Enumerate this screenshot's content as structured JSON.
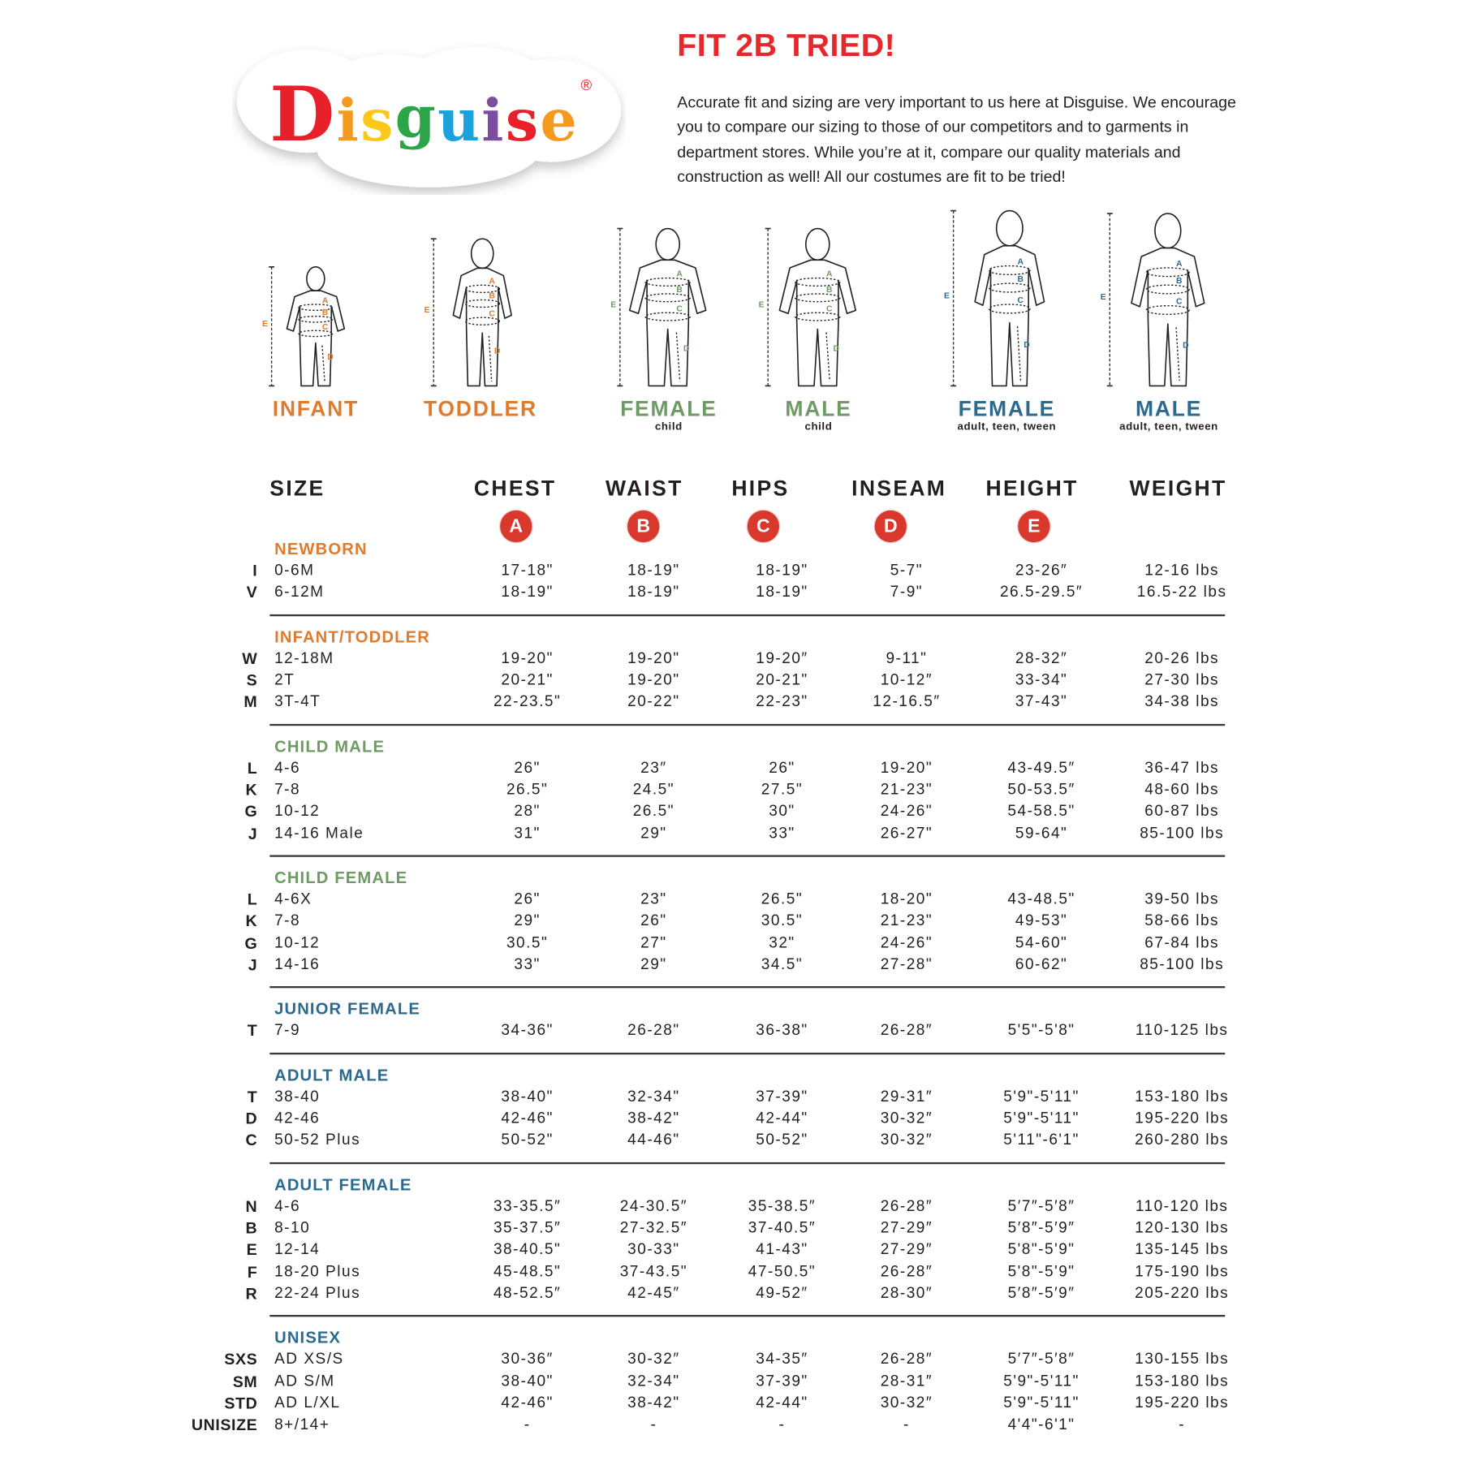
{
  "brand": {
    "logo_text": "Disguise",
    "logo_letters": [
      {
        "ch": "D",
        "color": "#e8202a"
      },
      {
        "ch": "i",
        "color": "#f39a1f"
      },
      {
        "ch": "s",
        "color": "#fcc817"
      },
      {
        "ch": "g",
        "color": "#2aa548"
      },
      {
        "ch": "u",
        "color": "#1ba2dc"
      },
      {
        "ch": "i",
        "color": "#7b4ea0"
      },
      {
        "ch": "s",
        "color": "#e8202a"
      },
      {
        "ch": "e",
        "color": "#f39a1f"
      }
    ],
    "registered_mark": "®"
  },
  "header": {
    "title": "FIT 2B TRIED!",
    "intro_lines": [
      "Accurate fit and sizing are very important to us here at Disguise. We encourage",
      "you to compare our sizing to those of our competitors and to garments in",
      "department stores. While you’re at it, compare our quality materials and",
      "construction as well! All our costumes are fit to be tried!"
    ]
  },
  "colors": {
    "title_red": "#e5282c",
    "badge_red": "#d9382c",
    "orange": "#e07a2c",
    "green": "#6e9a64",
    "blue": "#2b6a8f",
    "text": "#231f20"
  },
  "figures": [
    {
      "label": "INFANT",
      "sublabel": "",
      "color": "orange",
      "kind": "infant"
    },
    {
      "label": "TODDLER",
      "sublabel": "",
      "color": "orange",
      "kind": "toddler"
    },
    {
      "label": "FEMALE",
      "sublabel": "child",
      "color": "green",
      "kind": "child-female"
    },
    {
      "label": "MALE",
      "sublabel": "child",
      "color": "green",
      "kind": "child-male"
    },
    {
      "label": "FEMALE",
      "sublabel": "adult, teen, tween",
      "color": "blue",
      "kind": "adult-female"
    },
    {
      "label": "MALE",
      "sublabel": "adult, teen, tween",
      "color": "blue",
      "kind": "adult-male"
    }
  ],
  "measure_letters": [
    "A",
    "B",
    "C",
    "D",
    "E"
  ],
  "columns": {
    "size": "SIZE",
    "chest": "CHEST",
    "waist": "WAIST",
    "hips": "HIPS",
    "inseam": "INSEAM",
    "height": "HEIGHT",
    "weight": "WEIGHT",
    "badges": {
      "chest": "A",
      "waist": "B",
      "hips": "C",
      "inseam": "D",
      "height": "E"
    }
  },
  "sections": [
    {
      "title": "NEWBORN",
      "color": "orange",
      "rows": [
        {
          "code": "I",
          "size": "0-6M",
          "chest": "17-18\"",
          "waist": "18-19\"",
          "hips": "18-19\"",
          "inseam": "5-7\"",
          "height": "23-26″",
          "weight": "12-16 lbs"
        },
        {
          "code": "V",
          "size": "6-12M",
          "chest": "18-19\"",
          "waist": "18-19\"",
          "hips": "18-19\"",
          "inseam": "7-9\"",
          "height": "26.5-29.5″",
          "weight": "16.5-22 lbs"
        }
      ]
    },
    {
      "title": "INFANT/TODDLER",
      "color": "orange",
      "rows": [
        {
          "code": "W",
          "size": "12-18M",
          "chest": "19-20\"",
          "waist": "19-20\"",
          "hips": "19-20″",
          "inseam": "9-11\"",
          "height": "28-32″",
          "weight": "20-26 lbs"
        },
        {
          "code": "S",
          "size": "2T",
          "chest": "20-21\"",
          "waist": "19-20\"",
          "hips": "20-21\"",
          "inseam": "10-12″",
          "height": "33-34\"",
          "weight": "27-30 lbs"
        },
        {
          "code": "M",
          "size": "3T-4T",
          "chest": "22-23.5\"",
          "waist": "20-22\"",
          "hips": "22-23\"",
          "inseam": "12-16.5″",
          "height": "37-43\"",
          "weight": "34-38 lbs"
        }
      ]
    },
    {
      "title": "CHILD MALE",
      "color": "green",
      "rows": [
        {
          "code": "L",
          "size": "4-6",
          "chest": "26\"",
          "waist": "23″",
          "hips": "26\"",
          "inseam": "19-20\"",
          "height": "43-49.5″",
          "weight": "36-47 lbs"
        },
        {
          "code": "K",
          "size": "7-8",
          "chest": "26.5\"",
          "waist": "24.5\"",
          "hips": "27.5\"",
          "inseam": "21-23\"",
          "height": "50-53.5″",
          "weight": "48-60 lbs"
        },
        {
          "code": "G",
          "size": "10-12",
          "chest": "28\"",
          "waist": "26.5\"",
          "hips": "30\"",
          "inseam": "24-26\"",
          "height": "54-58.5\"",
          "weight": "60-87 lbs"
        },
        {
          "code": "J",
          "size": "14-16 Male",
          "chest": "31\"",
          "waist": "29\"",
          "hips": "33\"",
          "inseam": "26-27\"",
          "height": "59-64\"",
          "weight": "85-100 lbs"
        }
      ]
    },
    {
      "title": "CHILD FEMALE",
      "color": "green",
      "rows": [
        {
          "code": "L",
          "size": "4-6X",
          "chest": "26\"",
          "waist": "23\"",
          "hips": "26.5\"",
          "inseam": "18-20\"",
          "height": "43-48.5\"",
          "weight": "39-50 lbs"
        },
        {
          "code": "K",
          "size": "7-8",
          "chest": "29\"",
          "waist": "26\"",
          "hips": "30.5\"",
          "inseam": "21-23\"",
          "height": "49-53\"",
          "weight": "58-66 lbs"
        },
        {
          "code": "G",
          "size": "10-12",
          "chest": "30.5\"",
          "waist": "27\"",
          "hips": "32\"",
          "inseam": "24-26\"",
          "height": "54-60\"",
          "weight": "67-84 lbs"
        },
        {
          "code": "J",
          "size": "14-16",
          "chest": "33\"",
          "waist": "29\"",
          "hips": "34.5\"",
          "inseam": "27-28\"",
          "height": "60-62\"",
          "weight": "85-100 lbs"
        }
      ]
    },
    {
      "title": "JUNIOR FEMALE",
      "color": "blue",
      "rows": [
        {
          "code": "T",
          "size": "7-9",
          "chest": "34-36\"",
          "waist": "26-28\"",
          "hips": "36-38\"",
          "inseam": "26-28″",
          "height": "5'5\"-5'8\"",
          "weight": "110-125 lbs"
        }
      ]
    },
    {
      "title": "ADULT MALE",
      "color": "blue",
      "rows": [
        {
          "code": "T",
          "size": "38-40",
          "chest": "38-40\"",
          "waist": "32-34\"",
          "hips": "37-39\"",
          "inseam": "29-31″",
          "height": "5'9\"-5'11\"",
          "weight": "153-180 lbs"
        },
        {
          "code": "D",
          "size": "42-46",
          "chest": "42-46\"",
          "waist": "38-42\"",
          "hips": "42-44\"",
          "inseam": "30-32″",
          "height": "5'9\"-5'11\"",
          "weight": "195-220 lbs"
        },
        {
          "code": "C",
          "size": "50-52 Plus",
          "chest": "50-52\"",
          "waist": "44-46\"",
          "hips": "50-52\"",
          "inseam": "30-32″",
          "height": "5'11\"-6'1\"",
          "weight": "260-280 lbs"
        }
      ]
    },
    {
      "title": "ADULT FEMALE",
      "color": "blue",
      "rows": [
        {
          "code": "N",
          "size": "4-6",
          "chest": "33-35.5″",
          "waist": "24-30.5″",
          "hips": "35-38.5″",
          "inseam": "26-28″",
          "height": "5′7″-5′8″",
          "weight": "110-120 lbs"
        },
        {
          "code": "B",
          "size": "8-10",
          "chest": "35-37.5″",
          "waist": "27-32.5″",
          "hips": "37-40.5″",
          "inseam": "27-29″",
          "height": "5′8″-5′9″",
          "weight": "120-130 lbs"
        },
        {
          "code": "E",
          "size": "12-14",
          "chest": "38-40.5\"",
          "waist": "30-33\"",
          "hips": "41-43\"",
          "inseam": "27-29″",
          "height": "5'8\"-5'9\"",
          "weight": "135-145 lbs"
        },
        {
          "code": "F",
          "size": "18-20 Plus",
          "chest": "45-48.5\"",
          "waist": "37-43.5\"",
          "hips": "47-50.5\"",
          "inseam": "26-28″",
          "height": "5'8\"-5'9\"",
          "weight": "175-190 lbs"
        },
        {
          "code": "R",
          "size": "22-24 Plus",
          "chest": "48-52.5″",
          "waist": "42-45″",
          "hips": "49-52″",
          "inseam": "28-30″",
          "height": "5′8″-5′9″",
          "weight": "205-220 lbs"
        }
      ]
    },
    {
      "title": "UNISEX",
      "color": "blue",
      "rows": [
        {
          "code": "SXS",
          "size": "AD XS/S",
          "chest": "30-36″",
          "waist": "30-32″",
          "hips": "34-35″",
          "inseam": "26-28″",
          "height": "5′7″-5′8″",
          "weight": "130-155 lbs"
        },
        {
          "code": "SM",
          "size": "AD S/M",
          "chest": "38-40\"",
          "waist": "32-34\"",
          "hips": "37-39\"",
          "inseam": "28-31″",
          "height": "5'9\"-5'11\"",
          "weight": "153-180 lbs"
        },
        {
          "code": "STD",
          "size": "AD L/XL",
          "chest": "42-46\"",
          "waist": "38-42\"",
          "hips": "42-44\"",
          "inseam": "30-32″",
          "height": "5'9\"-5'11\"",
          "weight": "195-220 lbs"
        },
        {
          "code": "UNISIZE",
          "size": "8+/14+",
          "chest": "-",
          "waist": "-",
          "hips": "-",
          "inseam": "-",
          "height": "4'4\"-6'1\"",
          "weight": "-"
        }
      ]
    }
  ]
}
